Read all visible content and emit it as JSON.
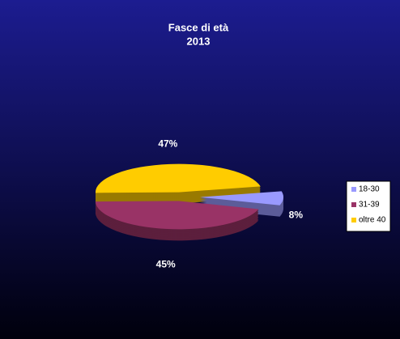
{
  "chart_data": {
    "type": "pie",
    "title": "Fasce di età",
    "subtitle": "2013",
    "categories": [
      "18-30",
      "31-39",
      "oltre 40"
    ],
    "values": [
      8,
      45,
      47
    ],
    "value_labels": [
      "8%",
      "45%",
      "47%"
    ],
    "colors": [
      "#9999ff",
      "#993366",
      "#ffcc00"
    ],
    "legend": "right"
  }
}
